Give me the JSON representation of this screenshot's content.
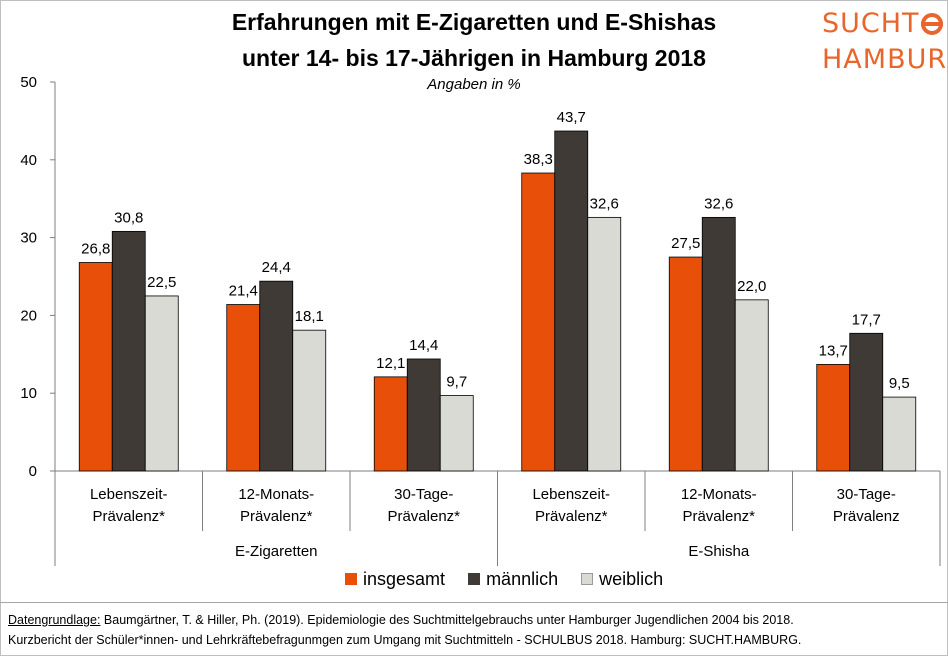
{
  "chart_data": {
    "type": "bar",
    "title": "Erfahrungen mit E-Zigaretten und E-Shishas",
    "title_line2": "unter 14- bis 17-Jährigen in Hamburg 2018",
    "subtitle": "Angaben in %",
    "ylim": [
      0,
      50
    ],
    "yticks": [
      0,
      10,
      20,
      30,
      40,
      50
    ],
    "categories": [
      [
        "Lebenszeit-",
        "Prävalenz*"
      ],
      [
        "12-Monats-",
        "Prävalenz*"
      ],
      [
        "30-Tage-",
        "Prävalenz*"
      ],
      [
        "Lebenszeit-",
        "Prävalenz*"
      ],
      [
        "12-Monats-",
        "Prävalenz*"
      ],
      [
        "30-Tage-",
        "Prävalenz"
      ]
    ],
    "groups": [
      {
        "label": "E-Zigaretten",
        "categories": [
          0,
          1,
          2
        ]
      },
      {
        "label": "E-Shisha",
        "categories": [
          3,
          4,
          5
        ]
      }
    ],
    "series": [
      {
        "name": "insgesamt",
        "color": "#e8500a",
        "values": [
          26.8,
          21.4,
          12.1,
          38.3,
          27.5,
          13.7
        ],
        "labels": [
          "26,8",
          "21,4",
          "12,1",
          "38,3",
          "27,5",
          "13,7"
        ]
      },
      {
        "name": "männlich",
        "color": "#3f3a36",
        "values": [
          30.8,
          24.4,
          14.4,
          43.7,
          32.6,
          17.7
        ],
        "labels": [
          "30,8",
          "24,4",
          "14,4",
          "43,7",
          "32,6",
          "17,7"
        ]
      },
      {
        "name": "weiblich",
        "color": "#d9dad3",
        "values": [
          22.5,
          18.1,
          9.7,
          32.6,
          22.0,
          9.5
        ],
        "labels": [
          "22,5",
          "18,1",
          "9,7",
          "32,6",
          "22,0",
          "9,5"
        ]
      }
    ],
    "grid": false,
    "legend_position": "bottom"
  },
  "logo": {
    "line1": "SUCHT",
    "line2": "HAMBURG",
    "color": "#e8662e"
  },
  "footer": {
    "source_label": "Datengrundlage:",
    "line1_rest": " Baumgärtner, T. & Hiller, Ph. (2019). Epidemiologie des Suchtmittelgebrauchs unter Hamburger Jugendlichen 2004 bis 2018.",
    "line2": "Kurzbericht der Schüler*innen- und Lehrkräftebefragunmgen zum Umgang mit Suchtmitteln - SCHULBUS 2018. Hamburg: SUCHT.HAMBURG."
  }
}
